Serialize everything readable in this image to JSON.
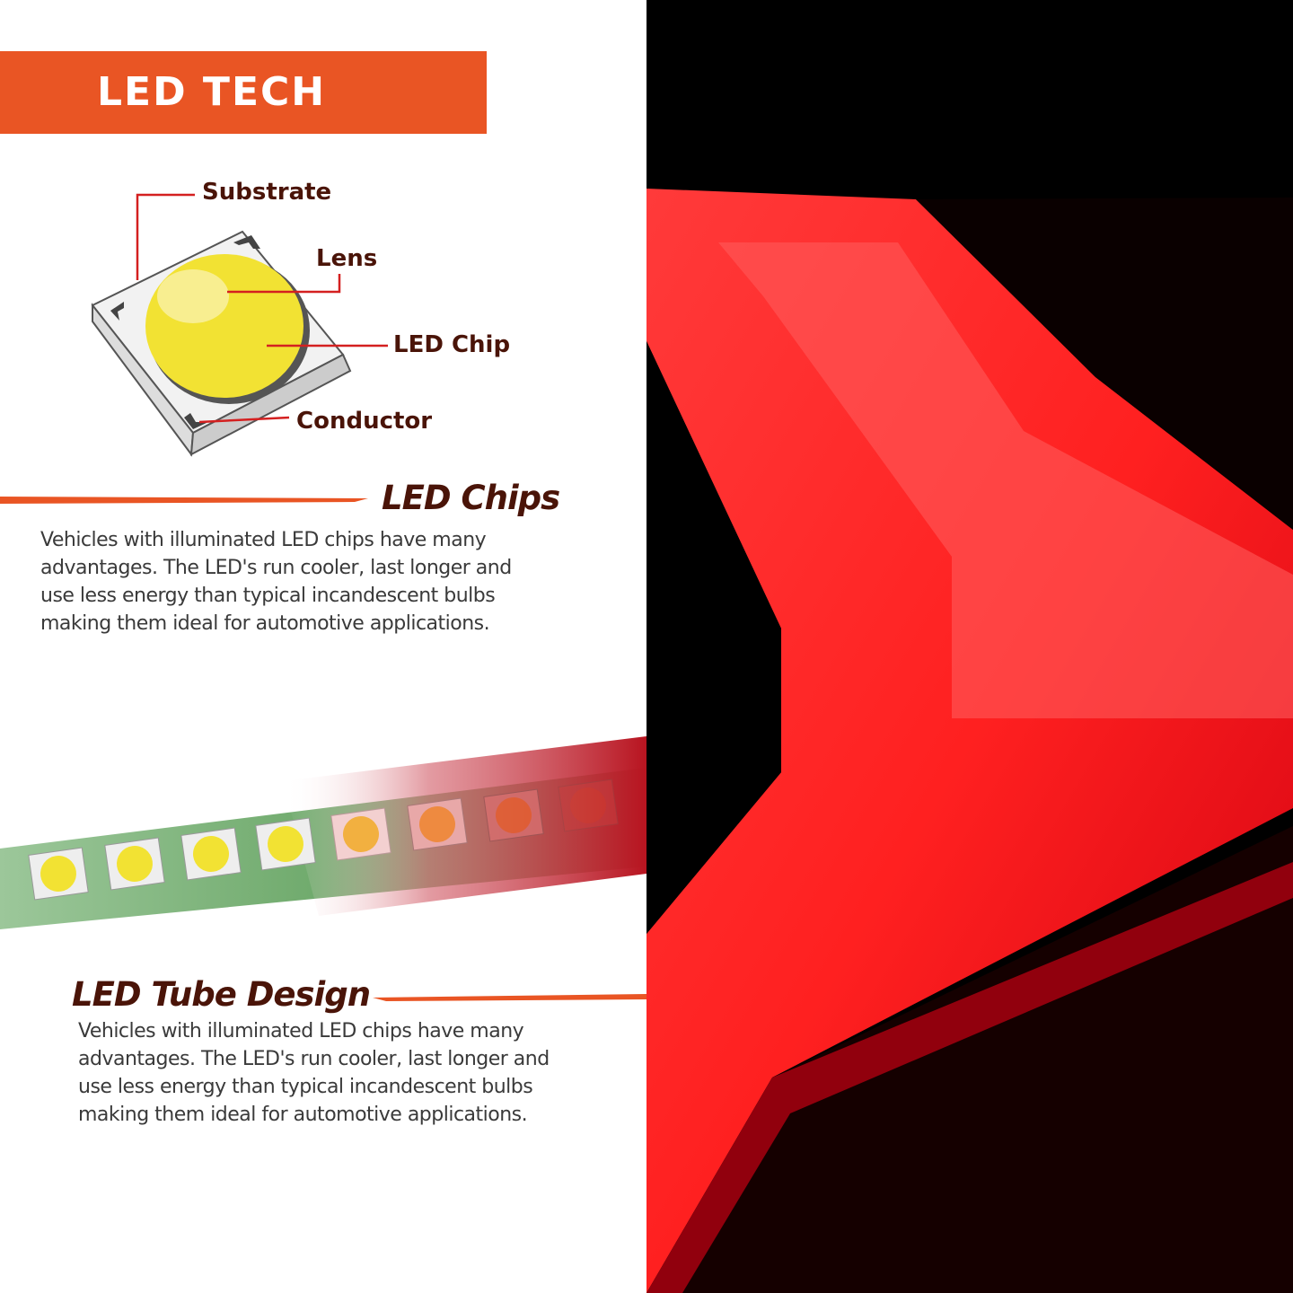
{
  "banner": {
    "title": "LED TECH"
  },
  "diagram": {
    "labels": {
      "substrate": "Substrate",
      "lens": "Lens",
      "led_chip": "LED Chip",
      "conductor": "Conductor"
    }
  },
  "sections": [
    {
      "heading": "LED Chips",
      "body": "Vehicles with illuminated LED chips have many\nadvantages.  The LED's run cooler, last longer and\nuse less energy than typical incandescent bulbs\nmaking them ideal for automotive applications."
    },
    {
      "heading": "LED Tube Design",
      "body": "Vehicles with illuminated LED chips have many\nadvantages.  The LED's run cooler, last longer and\nuse less energy than typical incandescent bulbs\nmaking them ideal for automotive applications."
    }
  ],
  "colors": {
    "accent": "#e95524",
    "heading": "#4a1408",
    "led_red": "#ff1a1a"
  }
}
